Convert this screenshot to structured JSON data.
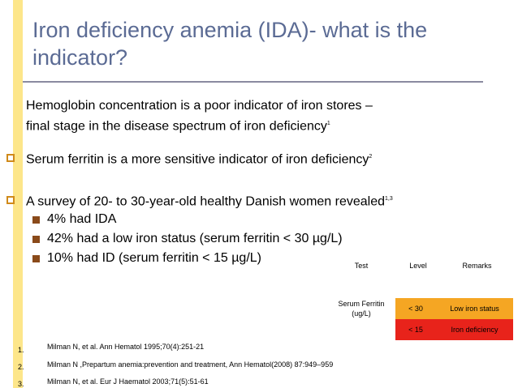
{
  "title": "Iron deficiency anemia (IDA)- what is the indicator?",
  "paragraphs": [
    {
      "text": "Hemoglobin concentration is a poor indicator of iron stores –",
      "text2": "final stage in the disease spectrum of iron deficiency",
      "sup": "1"
    },
    {
      "text": "Serum ferritin is a more sensitive indicator of iron deficiency",
      "sup": "2"
    },
    {
      "text": "A survey of 20- to 30-year-old healthy Danish women revealed",
      "sup": "1,3"
    }
  ],
  "sub_bullets": [
    "4% had IDA",
    "42% had a low iron status (serum ferritin < 30 µg/L)",
    "10% had ID (serum ferritin < 15 µg/L)"
  ],
  "table": {
    "headers": [
      "Test",
      "Level",
      "Remarks"
    ],
    "test_name": "Serum Ferritin (ug/L)",
    "rows": [
      {
        "level": "< 30",
        "remark": "Low iron status",
        "color": "#f5a623"
      },
      {
        "level": "< 15",
        "remark": "Iron deficiency",
        "color": "#e8231b"
      }
    ]
  },
  "references": [
    {
      "num": "1.",
      "text": "Milman N, et al. Ann Hematol 1995;70(4):251-21"
    },
    {
      "num": "2.",
      "text": "Milman N ,Prepartum anemia:prevention and treatment, Ann Hematol(2008) 87:949–959"
    },
    {
      "num": "3.",
      "text": "Milman N, et al. Eur J Haematol 2003;71(5):51-61"
    }
  ]
}
